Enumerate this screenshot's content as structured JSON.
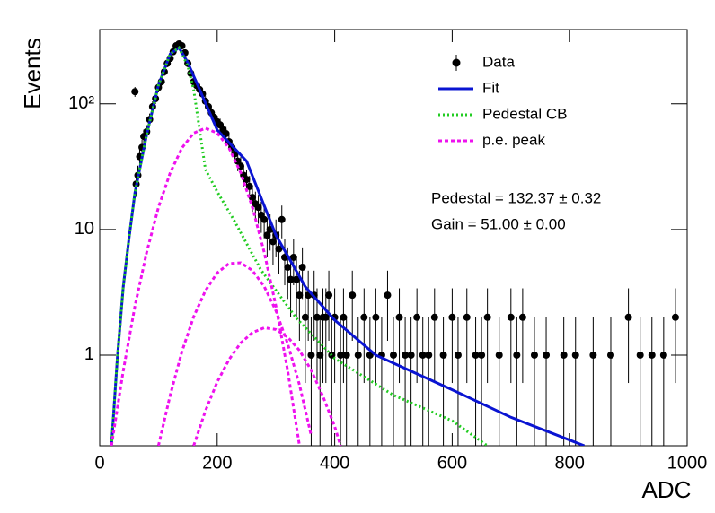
{
  "chart_data": {
    "type": "scatter",
    "x_label": "ADC",
    "y_label": "Events",
    "log_y": true,
    "xlim": [
      0,
      1000
    ],
    "ylim": [
      0.19,
      390
    ],
    "xticks": [
      0,
      200,
      400,
      600,
      800,
      1000
    ],
    "yticks": [
      1,
      10,
      {
        "value": 100,
        "label": "10²"
      }
    ],
    "annotations": [
      "Pedestal = 132.37 ± 0.32",
      "Gain = 51.00 ± 0.00"
    ],
    "series": [
      {
        "name": "Data",
        "kind": "points",
        "color": "#000000",
        "x": [
          60,
          62,
          65,
          68,
          72,
          75,
          80,
          85,
          90,
          95,
          100,
          105,
          110,
          115,
          120,
          125,
          130,
          135,
          140,
          145,
          150,
          155,
          160,
          165,
          170,
          175,
          180,
          185,
          190,
          195,
          200,
          205,
          210,
          215,
          220,
          225,
          230,
          235,
          240,
          245,
          250,
          255,
          260,
          265,
          270,
          275,
          280,
          285,
          290,
          295,
          300,
          305,
          310,
          315,
          320,
          325,
          330,
          335,
          340,
          345,
          350,
          355,
          360,
          365,
          370,
          375,
          380,
          385,
          390,
          395,
          400,
          410,
          415,
          420,
          430,
          440,
          450,
          460,
          470,
          480,
          490,
          500,
          510,
          520,
          530,
          540,
          550,
          560,
          570,
          585,
          600,
          610,
          625,
          640,
          650,
          660,
          680,
          700,
          710,
          720,
          740,
          760,
          790,
          810,
          840,
          870,
          900,
          920,
          940,
          960,
          980
        ],
        "values": [
          125,
          23,
          27,
          38,
          45,
          55,
          60,
          75,
          95,
          110,
          135,
          150,
          180,
          210,
          230,
          260,
          290,
          300,
          290,
          255,
          210,
          175,
          150,
          140,
          130,
          120,
          105,
          95,
          85,
          78,
          72,
          68,
          62,
          58,
          50,
          45,
          40,
          35,
          32,
          27,
          25,
          22,
          18,
          16,
          15,
          13,
          12,
          9,
          10,
          8,
          9,
          7,
          12,
          6,
          5,
          4,
          6,
          4,
          3,
          5,
          2,
          3,
          1,
          3,
          2,
          1,
          2,
          2,
          3,
          1,
          2,
          1,
          2,
          1,
          3,
          1,
          2,
          1,
          2,
          1,
          3,
          1,
          2,
          1,
          1,
          2,
          1,
          1,
          2,
          1,
          2,
          1,
          2,
          1,
          1,
          2,
          1,
          2,
          1,
          2,
          1,
          1,
          1,
          1,
          1,
          1,
          2,
          1,
          1,
          1,
          2
        ],
        "errors": [
          11.2,
          4.8,
          5.2,
          6.2,
          6.7,
          7.4,
          7.7,
          8.7,
          9.7,
          10.5,
          11.6,
          12.2,
          13.4,
          14.5,
          15.2,
          16.1,
          17,
          17.3,
          17,
          16,
          14.5,
          13.2,
          12.2,
          11.8,
          11.4,
          11,
          10.2,
          9.7,
          9.2,
          8.8,
          8.5,
          8.2,
          7.9,
          7.6,
          7.1,
          6.7,
          6.3,
          5.9,
          5.7,
          5.2,
          5,
          4.7,
          4.2,
          4,
          3.9,
          3.6,
          3.5,
          3,
          3.2,
          2.8,
          3,
          2.6,
          3.5,
          2.4,
          2.2,
          2,
          2.4,
          2,
          1.7,
          2.2,
          1.4,
          1.7,
          1,
          1.7,
          1.4,
          1,
          1.4,
          1.4,
          1.7,
          1,
          1.4,
          1,
          1.4,
          1,
          1.7,
          1,
          1.4,
          1,
          1.4,
          1,
          1.7,
          1,
          1.4,
          1,
          1,
          1.4,
          1,
          1,
          1.4,
          1,
          1.4,
          1,
          1.4,
          1,
          1,
          1.4,
          1,
          1.4,
          1,
          1.4,
          1,
          1,
          1,
          1,
          1,
          1,
          1.4,
          1,
          1,
          1,
          1.4
        ]
      },
      {
        "name": "Fit",
        "kind": "line",
        "color": "#0a14d2",
        "dash": "none",
        "x": [
          20,
          30,
          40,
          50,
          60,
          80,
          100,
          120,
          135,
          150,
          170,
          200,
          250,
          300,
          350,
          400,
          470,
          600,
          700,
          825
        ],
        "values": [
          0.19,
          0.94,
          3.5,
          8.6,
          19.6,
          57,
          141,
          250,
          280,
          213,
          130,
          62,
          35,
          9,
          3.5,
          1.9,
          1.0,
          0.53,
          0.32,
          0.19
        ]
      },
      {
        "name": "Pedestal CB",
        "kind": "line",
        "color": "#22cc22",
        "dash": "2 3",
        "x": [
          20,
          30,
          40,
          50,
          60,
          80,
          100,
          120,
          135,
          150,
          160,
          180,
          200,
          228,
          274,
          335,
          400,
          500,
          600,
          660
        ],
        "values": [
          0.19,
          0.94,
          3.5,
          8.6,
          19.6,
          57,
          141,
          250,
          280,
          200,
          130,
          30,
          20,
          12,
          4.8,
          1.96,
          0.94,
          0.48,
          0.3,
          0.19
        ]
      },
      {
        "name": "p.e. peak",
        "kind": "line",
        "color": "#ee11ee",
        "dash": "4 3",
        "x": [
          20,
          40,
          60,
          80,
          100,
          120,
          140,
          160,
          180,
          200,
          220,
          240,
          260,
          280,
          300,
          320,
          340,
          null,
          100,
          120,
          140,
          160,
          180,
          200,
          220,
          240,
          260,
          280,
          300,
          320,
          340,
          360,
          null,
          160,
          180,
          200,
          220,
          240,
          260,
          280,
          300,
          320,
          340,
          360,
          380,
          400,
          410
        ],
        "values": [
          0.19,
          0.75,
          2.45,
          6.6,
          15.0,
          28.3,
          44.6,
          58.5,
          64,
          58.5,
          44.6,
          28.3,
          15.0,
          6.6,
          2.45,
          0.75,
          0.19,
          null,
          0.19,
          0.48,
          1.07,
          2.02,
          3.26,
          4.51,
          5.35,
          5.43,
          4.72,
          3.52,
          2.25,
          1.23,
          0.58,
          0.23,
          null,
          0.19,
          0.36,
          0.61,
          0.92,
          1.25,
          1.51,
          1.65,
          1.6,
          1.39,
          1.09,
          0.76,
          0.47,
          0.27,
          0.19
        ]
      }
    ]
  }
}
